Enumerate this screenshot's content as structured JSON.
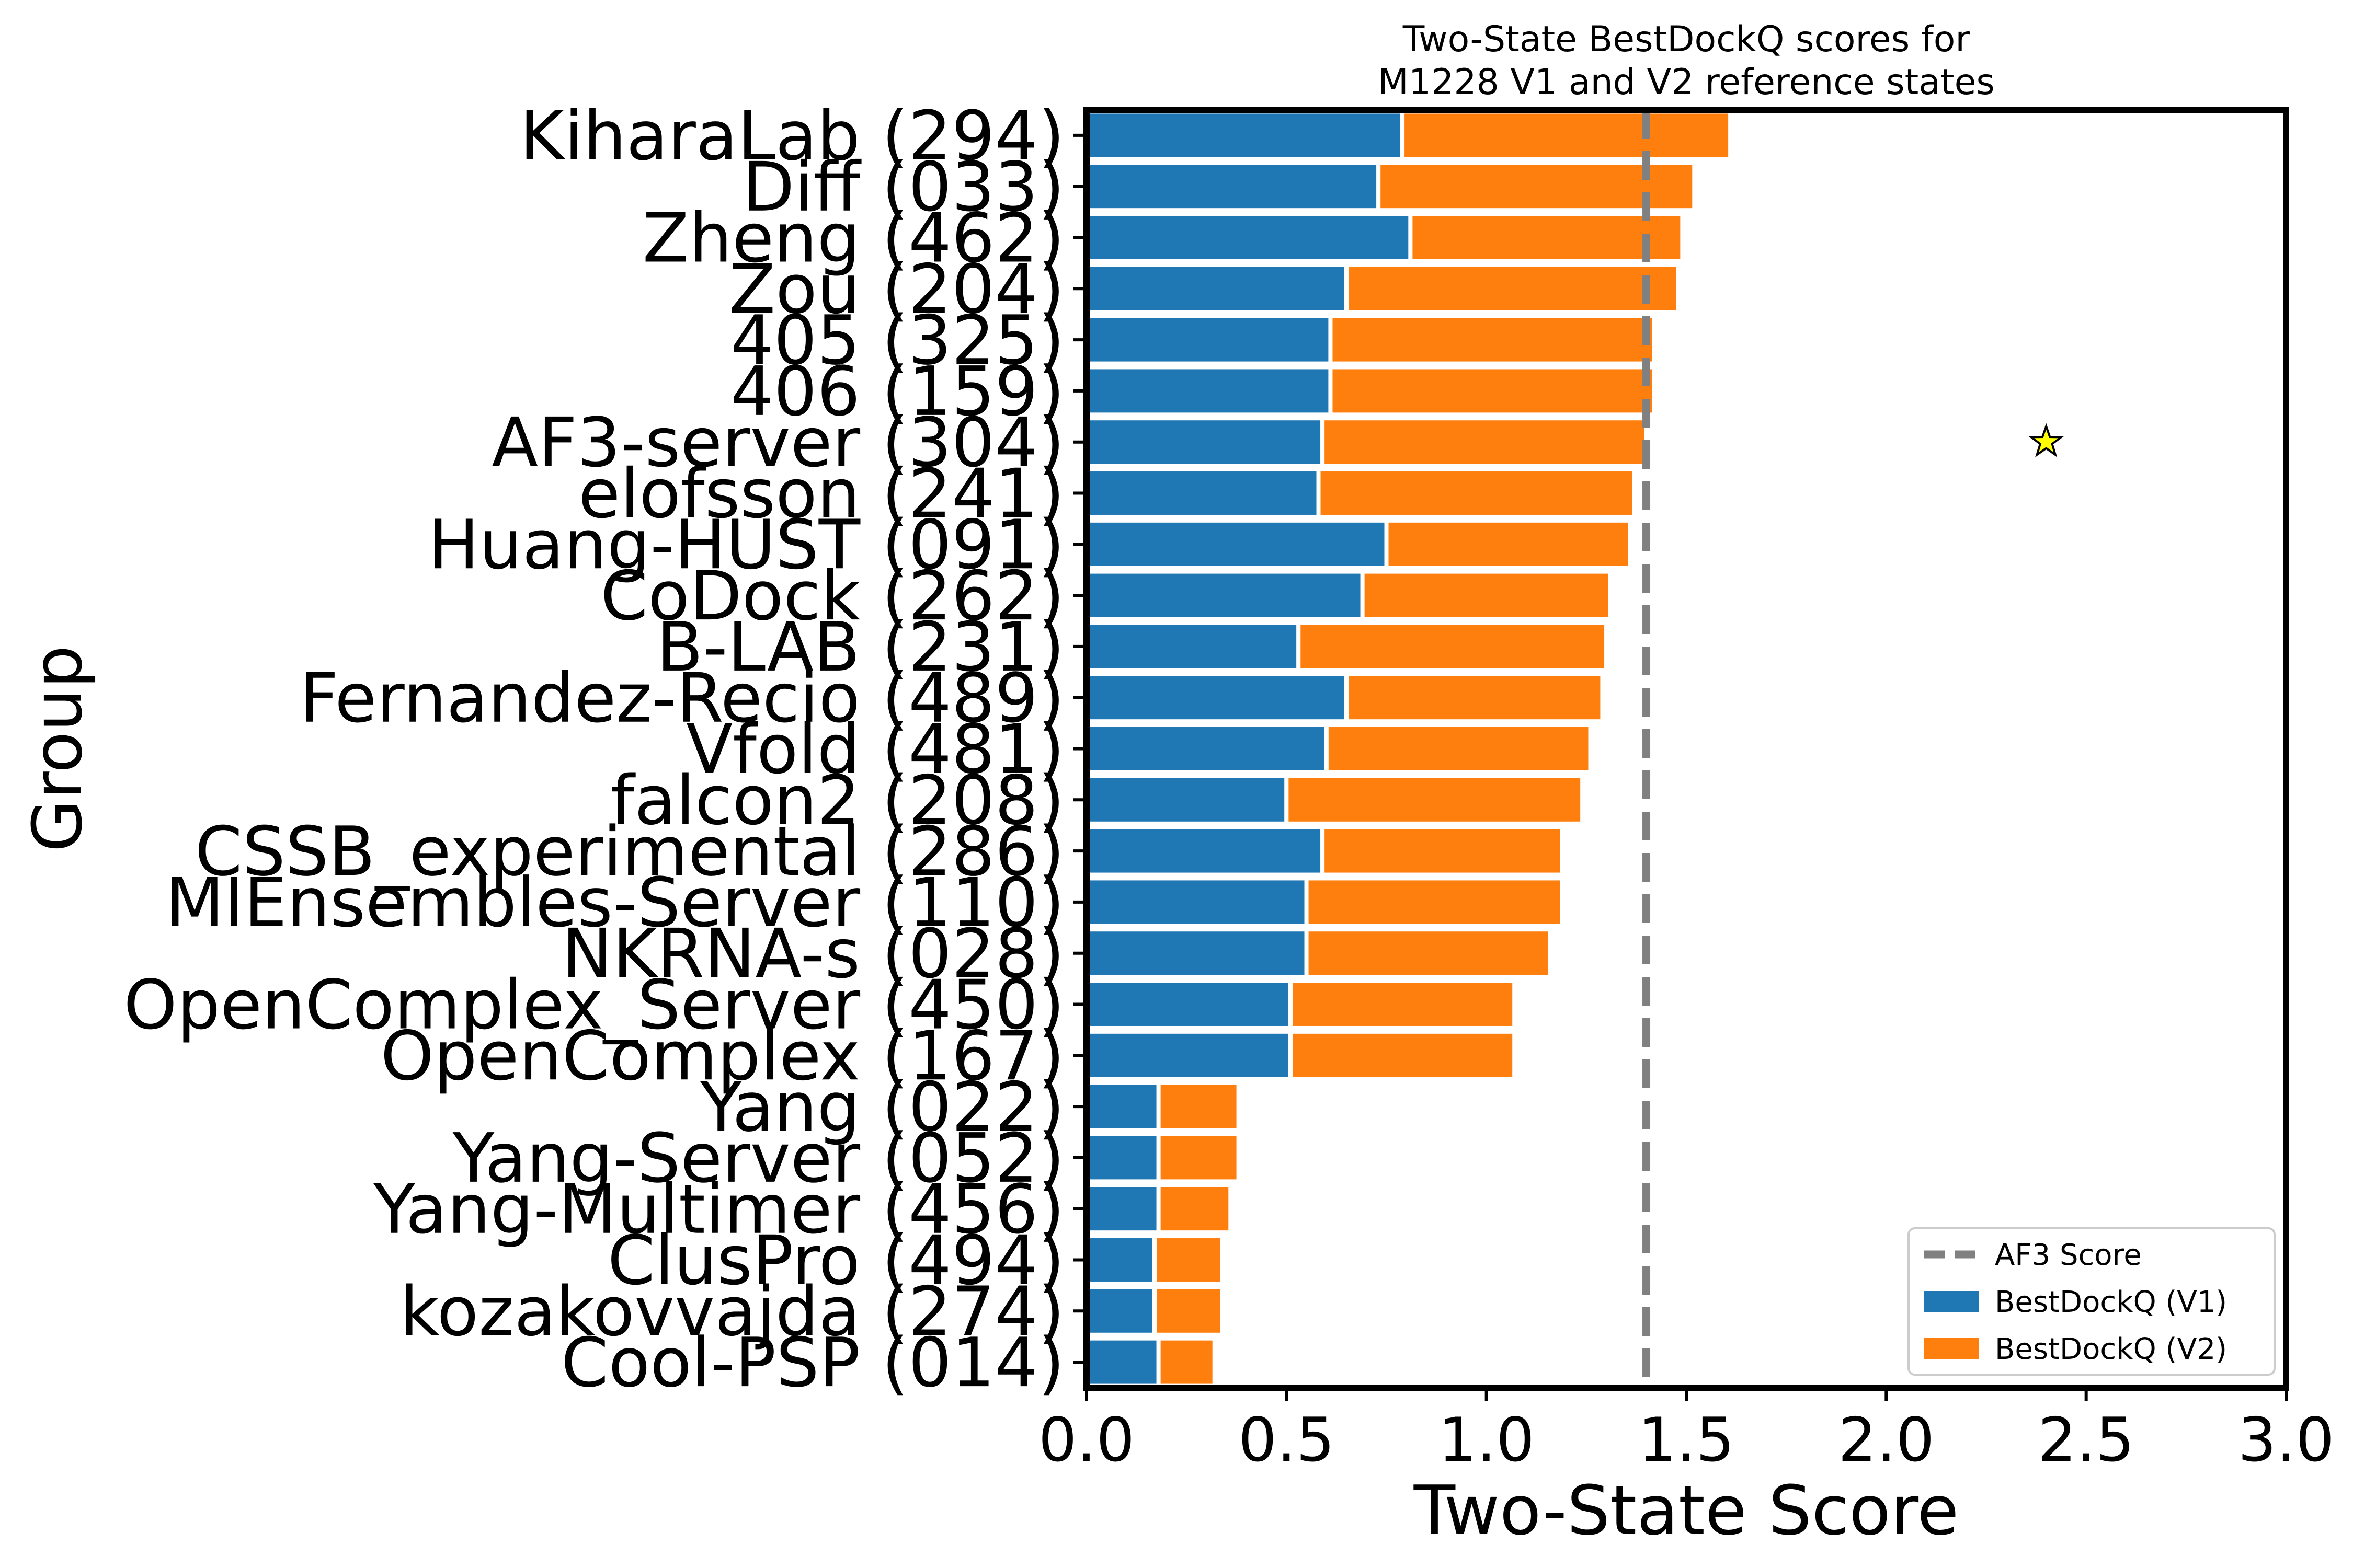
{
  "chart_data": {
    "type": "bar",
    "orientation": "horizontal",
    "stacked": true,
    "title_lines": [
      "Two-State BestDockQ scores for",
      "M1228 V1 and V2 reference states"
    ],
    "xlabel": "Two-State Score",
    "ylabel": "Group",
    "xlim": [
      0.0,
      3.0
    ],
    "xticks": [
      "0.0",
      "0.5",
      "1.0",
      "1.5",
      "2.0",
      "2.5",
      "3.0"
    ],
    "categories": [
      "KiharaLab (294)",
      "Diff (033)",
      "Zheng (462)",
      "Zou (204)",
      "405 (325)",
      "406 (159)",
      "AF3-server (304)",
      "elofsson (241)",
      "Huang-HUST (091)",
      "CoDock (262)",
      "B-LAB (231)",
      "Fernandez-Recio (489)",
      "Vfold (481)",
      "falcon2 (208)",
      "CSSB_experimental (286)",
      "MIEnsembles-Server (110)",
      "NKRNA-s (028)",
      "OpenComplex_Server (450)",
      "OpenComplex (167)",
      "Yang (022)",
      "Yang-Server (052)",
      "Yang-Multimer (456)",
      "ClusPro (494)",
      "kozakovvajda (274)",
      "Cool-PSP (014)"
    ],
    "series": [
      {
        "name": "BestDockQ (V1)",
        "color": "#1f77b4",
        "values": [
          0.79,
          0.73,
          0.81,
          0.65,
          0.61,
          0.61,
          0.59,
          0.58,
          0.75,
          0.69,
          0.53,
          0.65,
          0.6,
          0.5,
          0.59,
          0.55,
          0.55,
          0.51,
          0.51,
          0.18,
          0.18,
          0.18,
          0.17,
          0.17,
          0.18
        ]
      },
      {
        "name": "BestDockQ (V2)",
        "color": "#ff7f0e",
        "values": [
          0.82,
          0.79,
          0.68,
          0.83,
          0.81,
          0.81,
          0.81,
          0.79,
          0.61,
          0.62,
          0.77,
          0.64,
          0.66,
          0.74,
          0.6,
          0.64,
          0.61,
          0.56,
          0.56,
          0.2,
          0.2,
          0.18,
          0.17,
          0.17,
          0.14
        ]
      }
    ],
    "reference_line": {
      "name": "AF3 Score",
      "x": 1.4,
      "color": "#808080",
      "style": "dashed"
    },
    "marker": {
      "shape": "star",
      "x": 2.4,
      "category": "AF3-server (304)",
      "color": "#ffff00"
    },
    "legend": {
      "placement": "lower-right",
      "entries": [
        "AF3 Score",
        "BestDockQ (V1)",
        "BestDockQ (V2)"
      ]
    },
    "grid": false
  }
}
